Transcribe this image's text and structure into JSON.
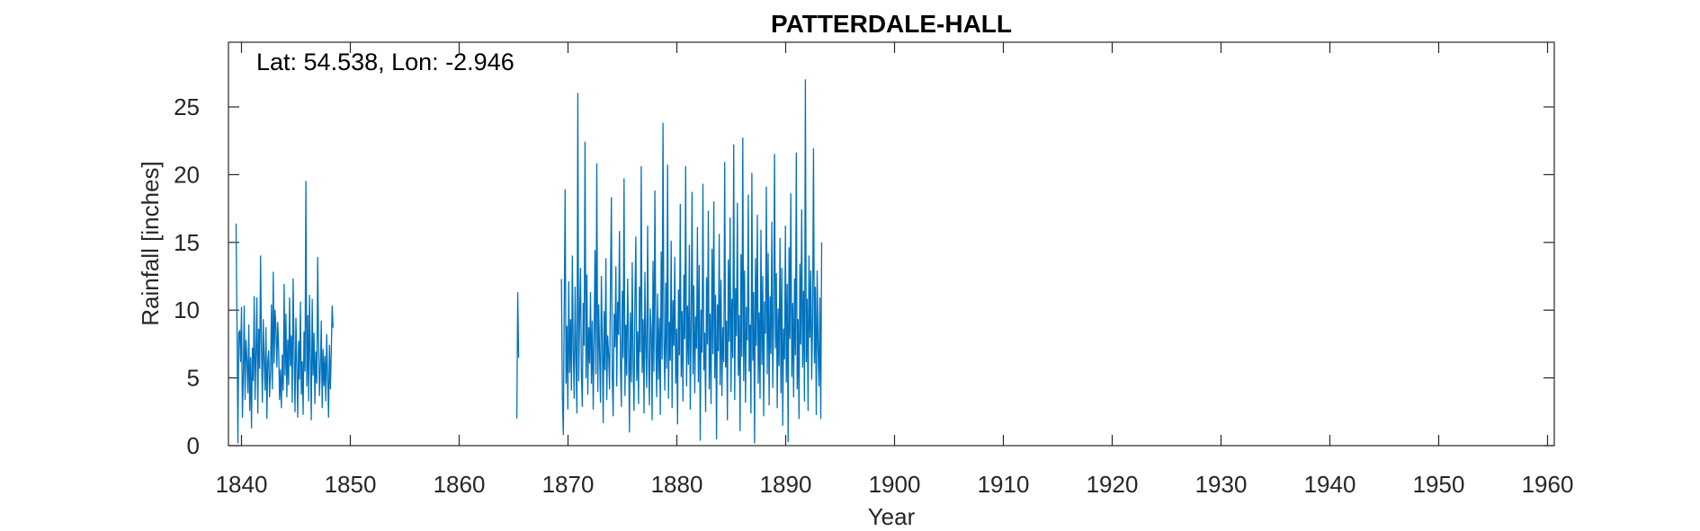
{
  "chart_data": {
    "type": "line",
    "title": "PATTERDALE-HALL",
    "annotation": "Lat: 54.538, Lon: -2.946",
    "xlabel": "Year",
    "ylabel": "Rainfall [inches]",
    "xlim": [
      1839.5,
      1961
    ],
    "ylim": [
      0,
      25
    ],
    "xticks": [
      1840,
      1850,
      1860,
      1870,
      1880,
      1890,
      1900,
      1910,
      1920,
      1930,
      1940,
      1950,
      1960
    ],
    "yticks": [
      0,
      5,
      10,
      15,
      20,
      25
    ],
    "grid": false,
    "series_color": "#0072BD",
    "series": [
      {
        "x_start": 1839.5,
        "step": 0.0833,
        "segments": [
          {
            "start": 1839.5,
            "values": [
              16.4,
              9.0,
              0.2,
              8.3,
              8.5,
              6.2,
              10.2,
              2.1,
              5.0,
              10.3,
              3.4,
              7.8,
              6.4,
              3.9,
              8.9,
              2.6,
              6.5,
              1.3,
              7.2,
              4.8,
              11.0,
              3.4,
              6.8,
              10.9,
              2.4,
              8.6,
              5.7,
              14.0,
              7.1,
              3.2,
              9.3,
              6.3,
              4.1,
              8.7,
              2.0,
              6.2,
              7.0,
              3.6,
              5.4,
              10.4,
              4.2,
              12.8,
              6.1,
              10.0,
              8.7,
              5.8,
              9.1,
              7.2,
              3.4,
              5.6,
              2.8,
              6.7,
              4.1,
              11.9,
              5.2,
              9.7,
              3.6,
              7.8,
              4.5,
              10.9,
              5.9,
              8.1,
              3.2,
              12.3,
              6.7,
              2.5,
              9.4,
              5.8,
              2.1,
              7.7,
              4.9,
              10.6,
              3.8,
              6.2,
              2.3,
              8.4,
              5.5,
              19.5,
              4.4,
              9.6,
              3.3,
              11.1,
              6.4,
              1.9,
              10.8,
              5.2,
              8.3,
              3.1,
              6.9,
              4.6,
              13.9,
              7.3,
              3.7,
              5.9,
              9.2,
              2.8,
              7.1,
              4.4,
              6.6,
              3.3,
              8.2,
              5.0,
              2.1,
              7.4,
              4.2,
              6.9,
              10.3,
              8.7
            ]
          },
          {
            "start": 1865.3,
            "values": [
              2.0,
              11.3,
              6.5
            ]
          },
          {
            "start": 1869.4,
            "values": [
              12.3,
              3.8,
              0.8,
              10.2,
              18.9,
              4.6,
              8.8,
              2.7,
              12.1,
              5.4,
              9.3,
              4.1,
              14.0,
              7.2,
              3.5,
              11.7,
              6.3,
              2.4,
              26.0,
              4.8,
              9.6,
              13.1,
              5.2,
              2.9,
              10.5,
              7.4,
              22.4,
              5.0,
              12.6,
              3.8,
              8.7,
              6.1,
              11.3,
              4.6,
              9.2,
              2.7,
              7.9,
              14.4,
              5.3,
              20.8,
              4.0,
              10.4,
              6.8,
              3.2,
              12.5,
              7.7,
              1.7,
              9.9,
              5.6,
              13.8,
              3.4,
              8.1,
              6.6,
              4.2,
              11.9,
              18.3,
              5.0,
              2.2,
              9.7,
              7.3,
              13.2,
              4.4,
              10.6,
              8.2,
              15.8,
              5.9,
              2.9,
              11.4,
              6.5,
              19.7,
              3.7,
              8.9,
              5.2,
              12.3,
              7.6,
              1.0,
              9.8,
              4.7,
              13.5,
              6.0,
              2.6,
              10.9,
              15.4,
              4.8,
              8.4,
              3.1,
              11.7,
              6.9,
              20.6,
              5.4,
              9.3,
              2.4,
              12.8,
              7.1,
              4.3,
              16.2,
              6.6,
              3.0,
              10.1,
              8.5,
              1.9,
              13.6,
              5.5,
              18.8,
              7.8,
              3.6,
              11.2,
              4.9,
              9.4,
              2.3,
              14.3,
              6.4,
              23.8,
              8.0,
              4.1,
              12.0,
              5.7,
              20.7,
              3.5,
              9.1,
              6.3,
              15.1,
              2.8,
              10.7,
              7.4,
              13.9,
              4.6,
              8.6,
              1.6,
              11.5,
              6.7,
              17.8,
              5.1,
              9.9,
              3.3,
              12.6,
              7.9,
              20.6,
              4.4,
              10.3,
              6.0,
              14.8,
              2.7,
              8.8,
              18.7,
              5.3,
              11.8,
              3.9,
              9.5,
              7.2,
              16.1,
              4.7,
              13.3,
              0.4,
              10.0,
              6.9,
              19.3,
              5.6,
              8.3,
              2.5,
              12.4,
              7.5,
              17.3,
              4.2,
              9.7,
              3.1,
              14.5,
              6.8,
              18.0,
              5.0,
              11.1,
              0.5,
              10.4,
              7.0,
              15.6,
              4.5,
              12.2,
              3.7,
              8.7,
              6.2,
              20.9,
              5.8,
              9.2,
              1.9,
              13.7,
              7.7,
              16.8,
              4.0,
              10.8,
              6.5,
              22.2,
              3.4,
              11.6,
              8.1,
              17.9,
              5.2,
              9.6,
              1.1,
              14.1,
              6.6,
              22.7,
              4.8,
              12.9,
              3.2,
              10.2,
              7.8,
              18.5,
              5.5,
              8.9,
              2.4,
              20.1,
              6.3,
              11.3,
              0.2,
              13.8,
              7.4,
              17.0,
              4.6,
              9.8,
              3.5,
              15.9,
              6.0,
              12.5,
              2.2,
              10.6,
              8.3,
              19.1,
              5.3,
              14.2,
              3.0,
              11.0,
              6.8,
              16.5,
              4.3,
              9.4,
              21.5,
              7.2,
              12.7,
              2.8,
              10.1,
              5.9,
              15.3,
              3.9,
              13.1,
              1.5,
              8.6,
              6.4,
              16.2,
              4.7,
              11.9,
              0.3,
              14.6,
              7.9,
              18.6,
              5.1,
              10.5,
              3.6,
              12.3,
              6.7,
              21.6,
              4.2,
              9.3,
              2.0,
              13.4,
              7.5,
              17.4,
              5.8,
              11.4,
              3.3,
              27.0,
              6.2,
              10.8,
              2.6,
              14.0,
              8.0,
              12.9,
              4.9,
              9.1,
              21.9,
              6.1,
              11.7,
              2.3,
              12.9,
              7.3,
              4.4,
              10.9,
              2.0,
              15.0
            ]
          }
        ]
      }
    ]
  }
}
